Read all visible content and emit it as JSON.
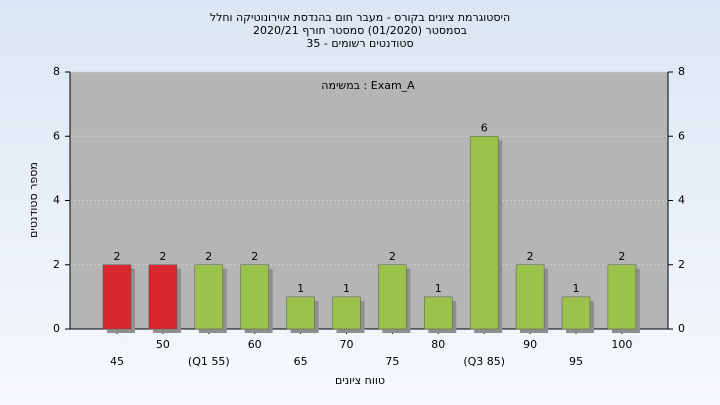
{
  "chart_data": {
    "type": "bar",
    "title": "היסטוגרמת ציונים בקורס - מעבר חום בהנדסת אוירונוטיקה וחלל",
    "subtitle": "בסמסטר  (01/2020)  סמסטר חורף 2020/21",
    "subtitle2": "35 - סטודנטים רשומים",
    "annotation": "במשימה : Exam_A",
    "x_label": "טווח ציונים",
    "y_label": "מספר סטודנטים",
    "categories": [
      "45",
      "50",
      "(Q1 55)",
      "60",
      "65",
      "70",
      "75",
      "80",
      "(Q3 85)",
      "90",
      "95",
      "100"
    ],
    "values": [
      2,
      2,
      2,
      2,
      1,
      1,
      2,
      1,
      6,
      2,
      1,
      2
    ],
    "colors": [
      "#d9272e",
      "#d9272e",
      "#9bc24a",
      "#9bc24a",
      "#9bc24a",
      "#9bc24a",
      "#9bc24a",
      "#9bc24a",
      "#9bc24a",
      "#9bc24a",
      "#9bc24a",
      "#9bc24a"
    ],
    "ylim": [
      0,
      8
    ],
    "yticks": [
      0,
      2,
      4,
      6,
      8
    ],
    "y2lim": [
      0,
      8
    ],
    "y2ticks": [
      0,
      2,
      4,
      6,
      8
    ],
    "grid": true,
    "plot_background": "#b5b5b5"
  }
}
